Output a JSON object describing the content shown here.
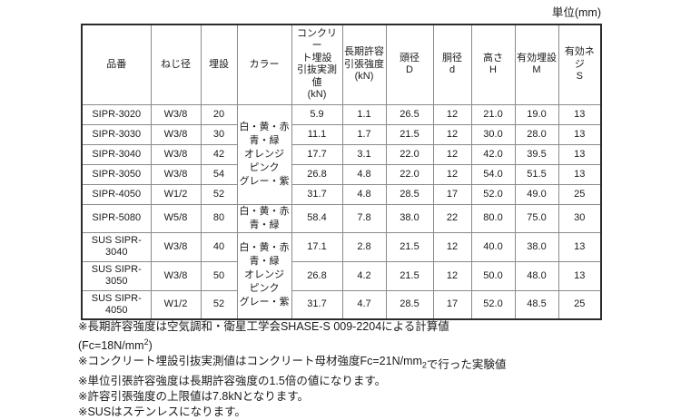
{
  "unit_label": "単位(mm)",
  "table": {
    "headers": [
      {
        "lines": [
          "品番"
        ]
      },
      {
        "lines": [
          "ねじ径"
        ]
      },
      {
        "lines": [
          "埋設"
        ]
      },
      {
        "lines": [
          "カラー"
        ]
      },
      {
        "lines": [
          "コンクリー",
          "ト埋設",
          "引抜実測",
          "値",
          "(kN)"
        ]
      },
      {
        "lines": [
          "長期許容",
          "引張強度",
          "(kN)"
        ]
      },
      {
        "lines": [
          "頭径",
          "D"
        ]
      },
      {
        "lines": [
          "胴径",
          "d"
        ]
      },
      {
        "lines": [
          "高さ",
          "H"
        ]
      },
      {
        "lines": [
          "有効埋設",
          "M"
        ]
      },
      {
        "lines": [
          "有効ネジ",
          "S"
        ]
      }
    ],
    "rows": [
      {
        "product": "SIPR-3020",
        "screw": "W3/8",
        "embed": "20",
        "color": {
          "rowspan": 5,
          "lines": [
            "白・黄・赤",
            "青・緑",
            "オレンジ",
            "ピンク",
            "グレー・紫"
          ]
        },
        "pullout": "5.9",
        "tensile": "1.1",
        "head_d": "26.5",
        "body_d": "12",
        "height": "21.0",
        "eff_embed": "19.0",
        "eff_screw": "13"
      },
      {
        "product": "SIPR-3030",
        "screw": "W3/8",
        "embed": "30",
        "pullout": "11.1",
        "tensile": "1.7",
        "head_d": "21.5",
        "body_d": "12",
        "height": "30.0",
        "eff_embed": "28.0",
        "eff_screw": "13"
      },
      {
        "product": "SIPR-3040",
        "screw": "W3/8",
        "embed": "42",
        "pullout": "17.7",
        "tensile": "3.1",
        "head_d": "22.0",
        "body_d": "12",
        "height": "42.0",
        "eff_embed": "39.5",
        "eff_screw": "13"
      },
      {
        "product": "SIPR-3050",
        "screw": "W3/8",
        "embed": "54",
        "pullout": "26.8",
        "tensile": "4.8",
        "head_d": "22.0",
        "body_d": "12",
        "height": "54.0",
        "eff_embed": "51.5",
        "eff_screw": "13"
      },
      {
        "product": "SIPR-4050",
        "screw": "W1/2",
        "embed": "52",
        "pullout": "31.7",
        "tensile": "4.8",
        "head_d": "28.5",
        "body_d": "17",
        "height": "52.0",
        "eff_embed": "49.0",
        "eff_screw": "25"
      },
      {
        "product": "SIPR-5080",
        "screw": "W5/8",
        "embed": "80",
        "color": {
          "rowspan": 1,
          "lines": [
            "白・黄・赤",
            "青・緑"
          ]
        },
        "pullout": "58.4",
        "tensile": "7.8",
        "head_d": "38.0",
        "body_d": "22",
        "height": "80.0",
        "eff_embed": "75.0",
        "eff_screw": "30"
      },
      {
        "product": "SUS SIPR-3040",
        "screw": "W3/8",
        "embed": "40",
        "color": {
          "rowspan": 3,
          "lines": [
            "白・黄・赤",
            "青・緑",
            "オレンジ",
            "ピンク",
            "グレー・紫"
          ]
        },
        "pullout": "17.1",
        "tensile": "2.8",
        "head_d": "21.5",
        "body_d": "12",
        "height": "40.0",
        "eff_embed": "38.0",
        "eff_screw": "13"
      },
      {
        "product": "SUS SIPR-3050",
        "screw": "W3/8",
        "embed": "50",
        "pullout": "26.8",
        "tensile": "4.2",
        "head_d": "21.5",
        "body_d": "12",
        "height": "50.0",
        "eff_embed": "48.0",
        "eff_screw": "13"
      },
      {
        "product": "SUS SIPR-4050",
        "screw": "W1/2",
        "embed": "52",
        "pullout": "31.7",
        "tensile": "4.7",
        "head_d": "28.5",
        "body_d": "17",
        "height": "52.0",
        "eff_embed": "48.5",
        "eff_screw": "25"
      }
    ]
  },
  "footnotes": [
    {
      "pre": "※長期許容強度は空気調和・衛星工学会SHASE-S 009-2204による計算値"
    },
    {
      "pre": "(Fc=18N/mm",
      "sup": "2",
      "tail": ")"
    },
    {
      "pre": "※コンクリート埋設引抜実測値はコンクリート母材強度Fc=21N/mm",
      "sub": "2",
      "tail": "で行った実験値",
      "tail_shifted": true
    },
    {
      "pre": "※単位引張許容強度は長期許容強度の1.5倍の値になります。"
    },
    {
      "pre": "※許容引張強度の上限値は7.8kNとなります。"
    },
    {
      "pre": "※SUSはステンレスになります。"
    }
  ]
}
